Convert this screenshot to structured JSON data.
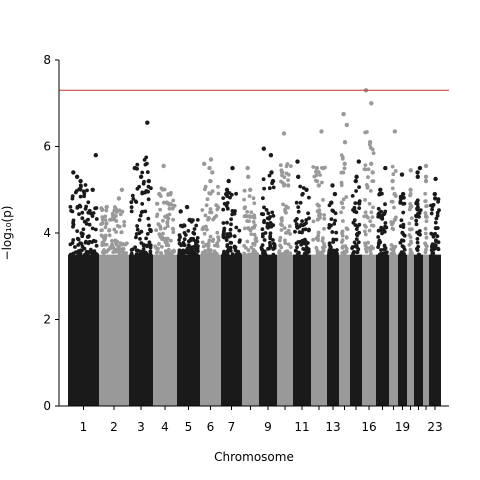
{
  "chart_data": {
    "type": "scatter",
    "subtype": "manhattan",
    "title": "",
    "xlabel": "Chromosome",
    "ylabel": "−log₁₀(p)",
    "ylim": [
      0,
      8
    ],
    "yticks": [
      0,
      2,
      4,
      6,
      8
    ],
    "threshold": 7.3,
    "threshold_color": "#c0392b",
    "colors": {
      "dark": "#1a1a1a",
      "light": "#999999"
    },
    "x_tick_labels": [
      "1",
      "2",
      "3",
      "4",
      "5",
      "6",
      "7",
      "9",
      "11",
      "13",
      "16",
      "19",
      "23"
    ],
    "chromosomes": [
      {
        "chr": "1",
        "dark": true,
        "max": 5.8,
        "top": [
          5.8,
          5.4,
          5.3,
          5.2,
          5.0
        ]
      },
      {
        "chr": "2",
        "dark": false,
        "max": 5.0,
        "top": [
          5.0,
          4.8,
          4.6
        ]
      },
      {
        "chr": "3",
        "dark": true,
        "max": 6.55,
        "top": [
          6.55,
          5.5,
          5.3,
          5.2
        ]
      },
      {
        "chr": "4",
        "dark": false,
        "max": 5.55,
        "top": [
          5.55,
          4.9,
          4.7
        ]
      },
      {
        "chr": "5",
        "dark": true,
        "max": 4.6,
        "top": [
          4.6,
          4.5,
          4.3
        ]
      },
      {
        "chr": "6",
        "dark": false,
        "max": 5.7,
        "top": [
          5.7,
          5.6,
          5.5,
          5.4,
          5.2
        ]
      },
      {
        "chr": "7",
        "dark": true,
        "max": 5.5,
        "top": [
          5.5,
          5.2,
          5.0,
          4.9
        ]
      },
      {
        "chr": "8",
        "dark": false,
        "max": 5.5,
        "top": [
          5.5,
          5.3,
          5.0
        ]
      },
      {
        "chr": "9",
        "dark": true,
        "max": 5.95,
        "top": [
          5.95,
          5.8,
          5.4,
          5.2
        ]
      },
      {
        "chr": "10",
        "dark": false,
        "max": 6.3,
        "top": [
          6.3,
          5.4,
          5.1
        ]
      },
      {
        "chr": "11",
        "dark": true,
        "max": 5.65,
        "top": [
          5.65,
          5.3,
          5.0
        ]
      },
      {
        "chr": "12",
        "dark": false,
        "max": 6.35,
        "top": [
          6.35,
          5.5,
          5.1
        ]
      },
      {
        "chr": "13",
        "dark": true,
        "max": 5.1,
        "top": [
          5.1,
          4.9,
          4.7
        ]
      },
      {
        "chr": "14",
        "dark": false,
        "max": 6.75,
        "top": [
          6.75,
          6.5,
          6.1,
          5.6
        ]
      },
      {
        "chr": "15",
        "dark": true,
        "max": 5.65,
        "top": [
          5.65,
          5.3,
          5.2
        ]
      },
      {
        "chr": "16",
        "dark": false,
        "max": 7.3,
        "top": [
          7.3,
          7.0,
          6.1,
          5.6,
          5.4
        ]
      },
      {
        "chr": "17",
        "dark": true,
        "max": 5.5,
        "top": [
          5.5,
          5.0,
          4.9
        ]
      },
      {
        "chr": "18",
        "dark": false,
        "max": 6.35,
        "top": [
          6.35,
          5.2,
          4.9
        ]
      },
      {
        "chr": "19",
        "dark": true,
        "max": 5.35,
        "top": [
          5.35,
          4.9,
          4.8
        ]
      },
      {
        "chr": "20",
        "dark": false,
        "max": 5.45,
        "top": [
          5.45,
          5.0,
          4.6
        ]
      },
      {
        "chr": "21",
        "dark": true,
        "max": 5.5,
        "top": [
          5.5,
          5.4,
          5.3
        ]
      },
      {
        "chr": "22",
        "dark": false,
        "max": 5.55,
        "top": [
          5.55,
          5.3,
          5.2
        ]
      },
      {
        "chr": "23",
        "dark": true,
        "max": 5.25,
        "top": [
          5.25,
          4.9,
          4.8
        ]
      }
    ]
  }
}
